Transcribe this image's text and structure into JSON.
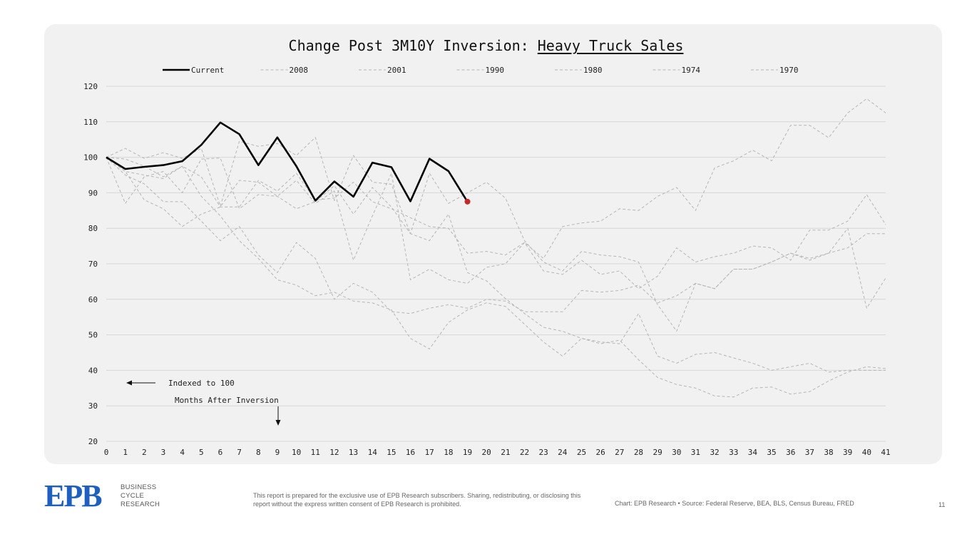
{
  "chart_data": {
    "type": "line",
    "title_prefix": "Change Post 3M10Y Inversion: ",
    "title_emph": "Heavy Truck Sales",
    "ylim": [
      20,
      120
    ],
    "yticks": [
      20,
      30,
      40,
      50,
      60,
      70,
      80,
      90,
      100,
      110,
      120
    ],
    "x_categories": [
      "0",
      "1",
      "2",
      "3",
      "4",
      "5",
      "6",
      "7",
      "8",
      "9",
      "10",
      "11",
      "12",
      "13",
      "14",
      "15",
      "16",
      "17",
      "18",
      "19",
      "20",
      "21",
      "22",
      "23",
      "24",
      "25",
      "26",
      "27",
      "28",
      "29",
      "30",
      "31",
      "32",
      "33",
      "34",
      "35",
      "36",
      "37",
      "38",
      "39",
      "40",
      "41"
    ],
    "grid": "horizontal",
    "legend_position": "top",
    "series": [
      {
        "name": "Current",
        "style": "solid",
        "color": "#000000",
        "values": [
          100,
          96.7,
          97.3,
          97.8,
          98.9,
          103.5,
          109.8,
          106.5,
          97.8,
          105.6,
          97.5,
          87.8,
          93.2,
          88.9,
          98.5,
          97.2,
          87.6,
          99.6,
          96.1,
          87.5
        ]
      },
      {
        "name": "2008",
        "style": "dashed",
        "color": "#b5b5b5",
        "values": [
          100,
          102.5,
          99.7,
          101.3,
          99.7,
          102.5,
          86.2,
          104.5,
          103.1,
          103.9,
          100.5,
          105.6,
          87.8,
          100.5,
          93.0,
          92.4,
          78.5,
          76.5,
          84.0,
          67.5,
          65.2,
          60.2,
          56.0,
          52.1,
          51.0,
          49.0,
          47.5,
          48.5,
          43.0,
          38.0,
          36.0,
          35.0,
          32.8,
          32.5,
          35.0,
          35.3,
          33.3,
          34.0,
          37.0,
          39.5,
          41.0,
          40.5
        ]
      },
      {
        "name": "2001",
        "style": "dashed",
        "color": "#b5b5b5",
        "values": [
          100,
          99.5,
          97.5,
          94.5,
          97.5,
          94.5,
          86.0,
          86.0,
          93.5,
          90.5,
          95.5,
          88.0,
          88.5,
          93.0,
          87.5,
          85.5,
          83.0,
          80.5,
          80.0,
          73.0,
          73.5,
          72.5,
          76.0,
          71.5,
          80.5,
          81.5,
          82.0,
          85.5,
          85.0,
          89.0,
          91.5,
          85.0,
          97.0,
          99.0,
          102.0,
          99.0,
          109.0,
          109.0,
          105.5,
          112.5,
          116.5,
          112.5
        ]
      },
      {
        "name": "1990",
        "style": "dashed",
        "color": "#b5b5b5",
        "values": [
          100,
          87.0,
          94.5,
          96.0,
          90.0,
          99.5,
          99.8,
          85.5,
          89.5,
          89.0,
          85.5,
          87.5,
          92.0,
          84.0,
          91.5,
          86.0,
          78.5,
          95.5,
          87.0,
          90.0,
          93.0,
          88.5,
          76.5,
          70.5,
          68.0,
          73.5,
          72.5,
          72.0,
          70.5,
          58.5,
          51.0,
          64.5,
          63.0,
          68.5,
          68.5,
          70.5,
          73.0,
          71.5,
          73.0,
          80.0,
          57.5,
          66.0
        ]
      },
      {
        "name": "1980",
        "style": "dashed",
        "color": "#b5b5b5",
        "values": [
          100,
          96.0,
          88.0,
          85.5,
          80.5,
          84.0,
          86.0,
          93.5,
          93.0,
          89.0,
          93.5,
          87.0,
          90.5,
          71.0,
          83.5,
          95.5,
          65.5,
          68.5,
          65.5,
          64.5,
          69.0,
          70.0,
          76.0,
          68.0,
          67.0,
          71.0,
          67.0,
          68.0,
          63.0,
          66.5,
          74.5,
          70.5,
          72.0,
          73.0,
          75.0,
          74.5,
          71.0,
          79.5,
          79.5,
          82.0,
          89.5,
          81.0
        ]
      },
      {
        "name": "1974",
        "style": "dashed",
        "color": "#b5b5b5",
        "values": [
          100,
          95.0,
          92.5,
          87.5,
          87.5,
          82.0,
          76.5,
          80.5,
          72.5,
          67.5,
          76.0,
          71.5,
          60.0,
          64.5,
          62.0,
          56.5,
          56.0,
          57.5,
          58.5,
          57.5,
          60.0,
          59.5,
          56.5,
          56.5,
          56.5,
          62.5,
          62.0,
          62.5,
          64.0,
          59.0,
          61.0,
          64.5,
          63.0,
          68.5,
          68.5,
          70.5,
          73.0,
          71.0,
          73.0,
          74.5,
          78.5,
          78.5
        ]
      },
      {
        "name": "1970",
        "style": "dashed",
        "color": "#b5b5b5",
        "values": [
          100,
          96.0,
          95.0,
          94.0,
          97.5,
          89.0,
          83.5,
          76.5,
          71.5,
          65.5,
          64.0,
          61.0,
          62.0,
          59.5,
          59.0,
          57.0,
          49.0,
          46.0,
          53.5,
          57.0,
          59.0,
          58.0,
          53.0,
          48.0,
          44.0,
          49.0,
          48.0,
          47.5,
          56.0,
          44.0,
          42.0,
          44.5,
          45.0,
          43.5,
          42.0,
          40.0,
          41.0,
          42.0,
          39.5,
          40.0,
          40.0,
          40.0
        ]
      }
    ],
    "highlight_point": {
      "x": 19,
      "y": 87.5,
      "color": "#c62828"
    },
    "annotations": {
      "indexed": "Indexed to 100",
      "months": "Months After Inversion"
    }
  },
  "footer": {
    "logo_letters": "EPB",
    "logo_line1": "BUSINESS",
    "logo_line2": "CYCLE",
    "logo_line3": "RESEARCH",
    "disclaimer": "This report is prepared for the exclusive use of EPB Research subscribers. Sharing, redistributing, or disclosing this report without the express written consent of EPB Research is prohibited.",
    "source": "Chart: EPB Research  •  Source: Federal Reserve, BEA, BLS, Census Bureau, FRED",
    "page": "11"
  }
}
